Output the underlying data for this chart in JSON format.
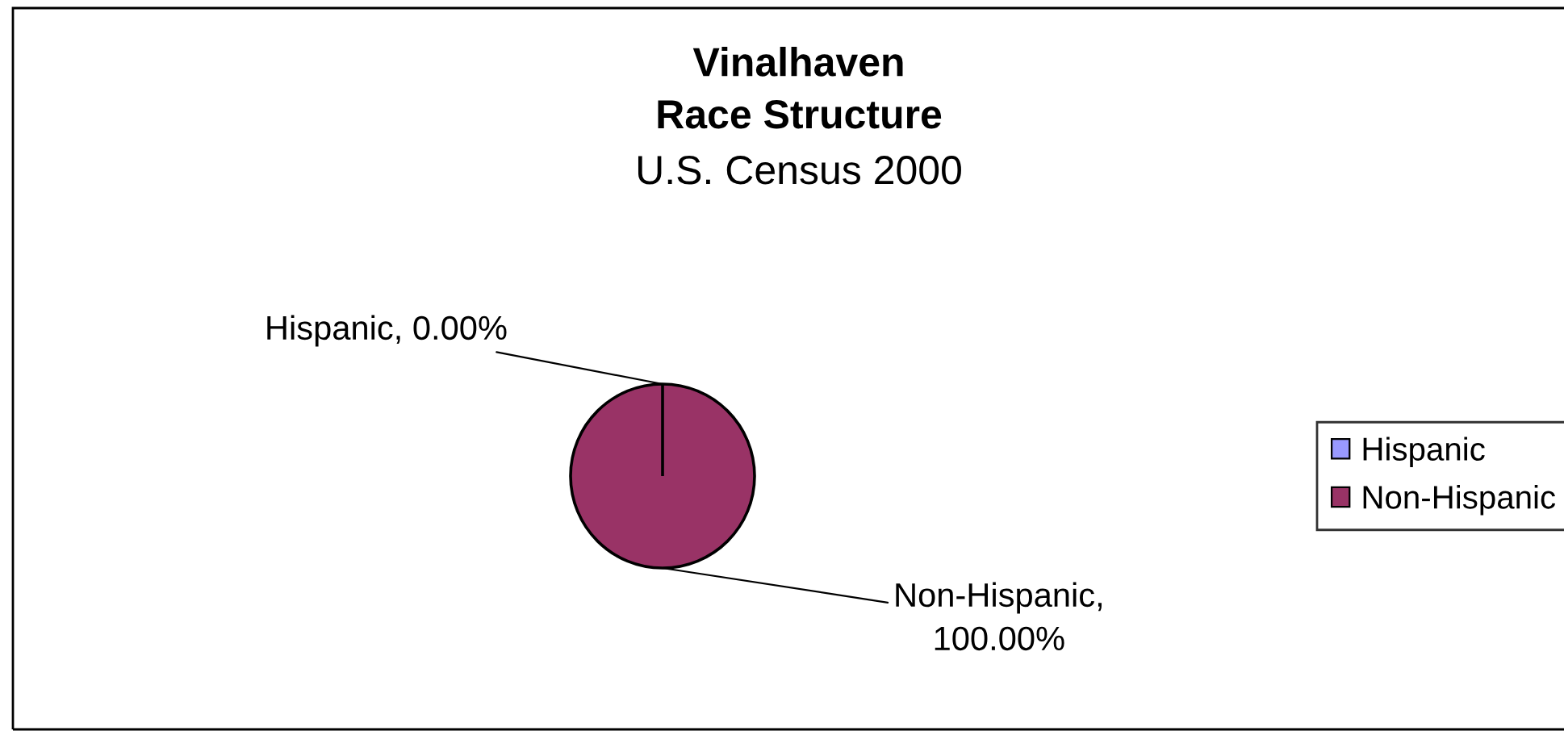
{
  "chart_data": {
    "type": "pie",
    "title": "Vinalhaven\nRace Structure",
    "subtitle": "U.S. Census 2000",
    "categories": [
      "Hispanic",
      "Non-Hispanic"
    ],
    "values": [
      0,
      100
    ],
    "colors": [
      "#9999ff",
      "#993366"
    ],
    "value_labels": [
      "Hispanic, 0.00%",
      "Non-Hispanic,\n100.00%"
    ],
    "legend": "right"
  }
}
